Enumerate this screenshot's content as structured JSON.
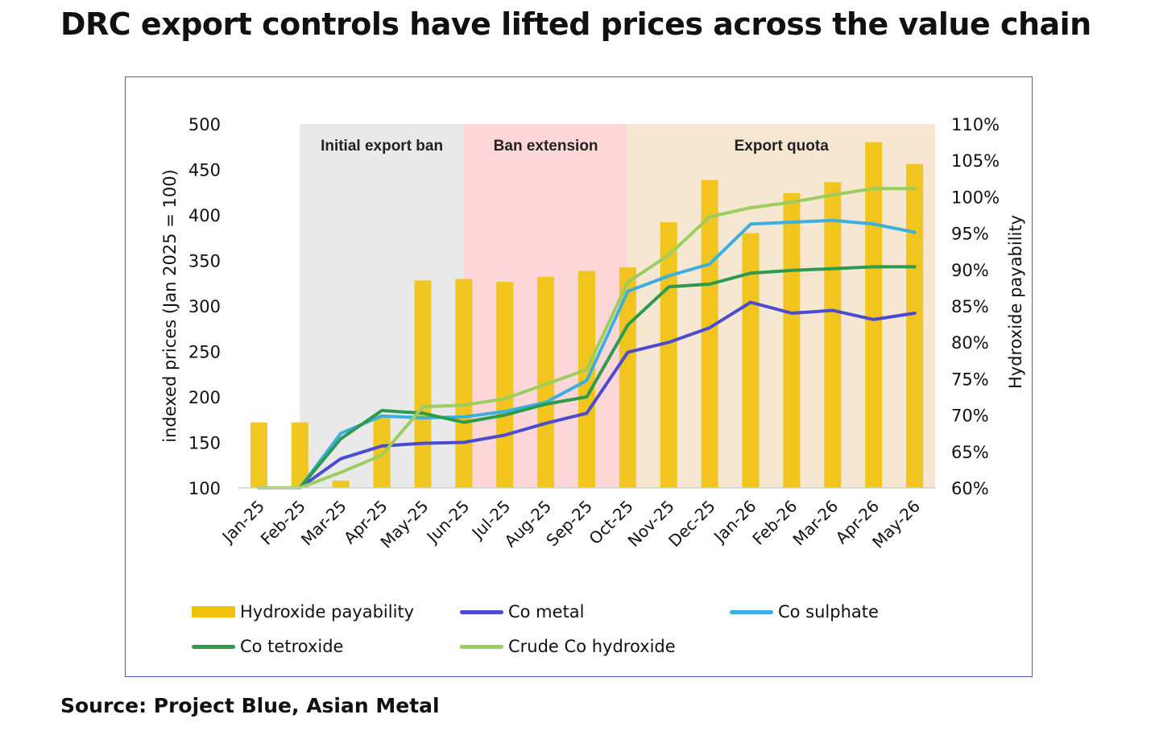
{
  "title": "DRC export controls have lifted prices across the value chain",
  "source": "Source: Project Blue, Asian Metal",
  "chart_data": {
    "type": "bar+line",
    "categories": [
      "Jan-25",
      "Feb-25",
      "Mar-25",
      "Apr-25",
      "May-25",
      "Jun-25",
      "Jul-25",
      "Aug-25",
      "Sep-25",
      "Oct-25",
      "Nov-25",
      "Dec-25",
      "Jan-26",
      "Feb-26",
      "Mar-26",
      "Apr-26",
      "May-26"
    ],
    "ylabel": "indexed prices (Jan 2025 = 100)",
    "ylim": [
      100,
      500
    ],
    "yticks": [
      "100",
      "150",
      "200",
      "250",
      "300",
      "350",
      "400",
      "450",
      "500"
    ],
    "y2label": "Hydroxide payability",
    "y2lim": [
      60,
      110
    ],
    "y2ticks": [
      "60%",
      "65%",
      "70%",
      "75%",
      "80%",
      "85%",
      "90%",
      "95%",
      "100%",
      "105%",
      "110%"
    ],
    "periods": [
      {
        "label": "Initial export ban",
        "start": "Feb-25",
        "end": "Jun-25",
        "color": "#e9e9e9"
      },
      {
        "label": "Ban extension",
        "start": "Jun-25",
        "end": "Oct-25",
        "color": "#fdd7d7"
      },
      {
        "label": "Export quota",
        "start": "Oct-25",
        "end": "May-26",
        "color": "#f6e7d2"
      }
    ],
    "bars": {
      "name": "Hydroxide payability",
      "axis": "right",
      "color": "#f0c20e",
      "values": [
        69,
        69,
        61,
        70,
        88.5,
        88.7,
        88.3,
        89.0,
        89.8,
        90.3,
        96.5,
        102.3,
        95.0,
        100.5,
        102.0,
        107.5,
        104.5
      ]
    },
    "series": [
      {
        "name": "Co metal",
        "color": "#4a4bd0",
        "values": [
          100,
          100,
          132,
          146,
          149,
          150,
          158,
          171,
          182,
          249,
          260,
          276,
          304,
          292,
          295,
          285,
          292
        ]
      },
      {
        "name": "Co sulphate",
        "color": "#3bb0e0",
        "values": [
          100,
          100,
          160,
          179,
          177,
          178,
          184,
          194,
          218,
          316,
          333,
          346,
          390,
          392,
          394,
          390,
          381
        ]
      },
      {
        "name": "Co tetroxide",
        "color": "#2d9a4e",
        "values": [
          100,
          100,
          154,
          185,
          182,
          172,
          180,
          192,
          200,
          279,
          321,
          324,
          336,
          339,
          341,
          343,
          343
        ]
      },
      {
        "name": "Crude Co hydroxide",
        "color": "#9ccd5e",
        "values": [
          100,
          100,
          117,
          136,
          189,
          191,
          198,
          214,
          230,
          326,
          356,
          398,
          408,
          414,
          422,
          429,
          429
        ]
      }
    ]
  }
}
